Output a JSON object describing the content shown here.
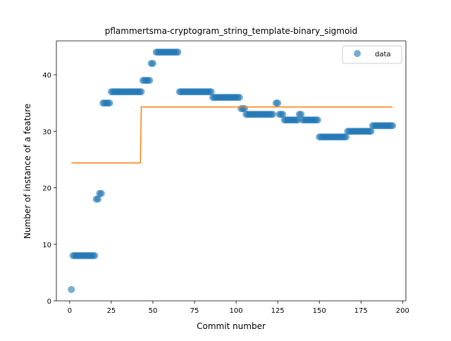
{
  "chart_data": {
    "type": "scatter",
    "title": "pflammertsma-cryptogram_string_template-binary_sigmoid",
    "xlabel": "Commit number",
    "ylabel": "Number of instance of a feature",
    "xlim": [
      -8,
      202
    ],
    "ylim": [
      0,
      46
    ],
    "xticks": [
      0,
      25,
      50,
      75,
      100,
      125,
      150,
      175,
      200
    ],
    "yticks": [
      0,
      10,
      20,
      30,
      40
    ],
    "grid": false,
    "legend": {
      "placement": "top-right",
      "entries": [
        "data"
      ]
    },
    "colors": {
      "data": "#1f77b4",
      "fit": "#ff7f0e"
    },
    "series": [
      {
        "name": "data",
        "kind": "scatter",
        "points": [
          [
            1,
            2
          ],
          [
            2,
            8
          ],
          [
            3,
            8
          ],
          [
            4,
            8
          ],
          [
            5,
            8
          ],
          [
            6,
            8
          ],
          [
            7,
            8
          ],
          [
            8,
            8
          ],
          [
            9,
            8
          ],
          [
            10,
            8
          ],
          [
            11,
            8
          ],
          [
            12,
            8
          ],
          [
            13,
            8
          ],
          [
            14,
            8
          ],
          [
            15,
            8
          ],
          [
            16,
            18
          ],
          [
            17,
            18
          ],
          [
            18,
            19
          ],
          [
            19,
            19
          ],
          [
            20,
            35
          ],
          [
            21,
            35
          ],
          [
            22,
            35
          ],
          [
            23,
            35
          ],
          [
            24,
            35
          ],
          [
            25,
            37
          ],
          [
            26,
            37
          ],
          [
            27,
            37
          ],
          [
            28,
            37
          ],
          [
            29,
            37
          ],
          [
            30,
            37
          ],
          [
            31,
            37
          ],
          [
            32,
            37
          ],
          [
            33,
            37
          ],
          [
            34,
            37
          ],
          [
            35,
            37
          ],
          [
            36,
            37
          ],
          [
            37,
            37
          ],
          [
            38,
            37
          ],
          [
            39,
            37
          ],
          [
            40,
            37
          ],
          [
            41,
            37
          ],
          [
            42,
            37
          ],
          [
            43,
            37
          ],
          [
            44,
            39
          ],
          [
            45,
            39
          ],
          [
            46,
            39
          ],
          [
            47,
            39
          ],
          [
            48,
            39
          ],
          [
            49,
            42
          ],
          [
            50,
            42
          ],
          [
            52,
            44
          ],
          [
            53,
            44
          ],
          [
            54,
            44
          ],
          [
            55,
            44
          ],
          [
            56,
            44
          ],
          [
            57,
            44
          ],
          [
            58,
            44
          ],
          [
            59,
            44
          ],
          [
            60,
            44
          ],
          [
            61,
            44
          ],
          [
            62,
            44
          ],
          [
            63,
            44
          ],
          [
            64,
            44
          ],
          [
            65,
            44
          ],
          [
            66,
            37
          ],
          [
            67,
            37
          ],
          [
            68,
            37
          ],
          [
            69,
            37
          ],
          [
            70,
            37
          ],
          [
            71,
            37
          ],
          [
            72,
            37
          ],
          [
            73,
            37
          ],
          [
            74,
            37
          ],
          [
            75,
            37
          ],
          [
            76,
            37
          ],
          [
            77,
            37
          ],
          [
            78,
            37
          ],
          [
            79,
            37
          ],
          [
            80,
            37
          ],
          [
            81,
            37
          ],
          [
            82,
            37
          ],
          [
            83,
            37
          ],
          [
            84,
            37
          ],
          [
            85,
            37
          ],
          [
            86,
            36
          ],
          [
            87,
            36
          ],
          [
            88,
            36
          ],
          [
            89,
            36
          ],
          [
            90,
            36
          ],
          [
            91,
            36
          ],
          [
            92,
            36
          ],
          [
            93,
            36
          ],
          [
            94,
            36
          ],
          [
            95,
            36
          ],
          [
            96,
            36
          ],
          [
            97,
            36
          ],
          [
            98,
            36
          ],
          [
            99,
            36
          ],
          [
            100,
            36
          ],
          [
            101,
            36
          ],
          [
            102,
            36
          ],
          [
            103,
            34
          ],
          [
            104,
            34
          ],
          [
            105,
            34
          ],
          [
            106,
            33
          ],
          [
            107,
            33
          ],
          [
            108,
            33
          ],
          [
            109,
            33
          ],
          [
            110,
            33
          ],
          [
            111,
            33
          ],
          [
            112,
            33
          ],
          [
            113,
            33
          ],
          [
            114,
            33
          ],
          [
            115,
            33
          ],
          [
            116,
            33
          ],
          [
            117,
            33
          ],
          [
            118,
            33
          ],
          [
            119,
            33
          ],
          [
            120,
            33
          ],
          [
            121,
            33
          ],
          [
            122,
            33
          ],
          [
            124,
            35
          ],
          [
            125,
            35
          ],
          [
            126,
            33
          ],
          [
            127,
            33
          ],
          [
            128,
            33
          ],
          [
            129,
            32
          ],
          [
            130,
            32
          ],
          [
            131,
            32
          ],
          [
            132,
            32
          ],
          [
            133,
            32
          ],
          [
            134,
            32
          ],
          [
            135,
            32
          ],
          [
            136,
            32
          ],
          [
            137,
            32
          ],
          [
            138,
            33
          ],
          [
            139,
            33
          ],
          [
            140,
            32
          ],
          [
            141,
            32
          ],
          [
            142,
            32
          ],
          [
            143,
            32
          ],
          [
            144,
            32
          ],
          [
            145,
            32
          ],
          [
            146,
            32
          ],
          [
            147,
            32
          ],
          [
            148,
            32
          ],
          [
            149,
            32
          ],
          [
            150,
            29
          ],
          [
            151,
            29
          ],
          [
            152,
            29
          ],
          [
            153,
            29
          ],
          [
            154,
            29
          ],
          [
            155,
            29
          ],
          [
            156,
            29
          ],
          [
            157,
            29
          ],
          [
            158,
            29
          ],
          [
            159,
            29
          ],
          [
            160,
            29
          ],
          [
            161,
            29
          ],
          [
            162,
            29
          ],
          [
            163,
            29
          ],
          [
            164,
            29
          ],
          [
            165,
            29
          ],
          [
            166,
            29
          ],
          [
            167,
            30
          ],
          [
            168,
            30
          ],
          [
            169,
            30
          ],
          [
            170,
            30
          ],
          [
            171,
            30
          ],
          [
            172,
            30
          ],
          [
            173,
            30
          ],
          [
            174,
            30
          ],
          [
            175,
            30
          ],
          [
            176,
            30
          ],
          [
            177,
            30
          ],
          [
            178,
            30
          ],
          [
            179,
            30
          ],
          [
            180,
            30
          ],
          [
            181,
            30
          ],
          [
            182,
            31
          ],
          [
            183,
            31
          ],
          [
            184,
            31
          ],
          [
            185,
            31
          ],
          [
            186,
            31
          ],
          [
            187,
            31
          ],
          [
            188,
            31
          ],
          [
            189,
            31
          ],
          [
            190,
            31
          ],
          [
            191,
            31
          ],
          [
            192,
            31
          ],
          [
            193,
            31
          ],
          [
            194,
            31
          ]
        ]
      },
      {
        "kind": "line",
        "points": [
          [
            1,
            24.4
          ],
          [
            42.5,
            24.4
          ],
          [
            43,
            34.3
          ],
          [
            194,
            34.3
          ]
        ]
      }
    ]
  }
}
